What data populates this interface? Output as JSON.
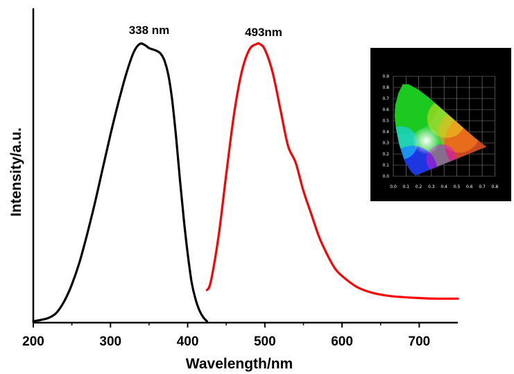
{
  "chart_data": {
    "type": "line",
    "xlabel": "Wavelength/nm",
    "ylabel": "Intensity/a.u.",
    "xlim": [
      200,
      750
    ],
    "ylim": [
      0,
      1
    ],
    "x_ticks": [
      200,
      300,
      400,
      500,
      600,
      700
    ],
    "grid": false,
    "series": [
      {
        "color": "#000000",
        "x": [
          200,
          210,
          220,
          230,
          240,
          250,
          260,
          270,
          280,
          290,
          300,
          310,
          320,
          330,
          338,
          345,
          350,
          360,
          365,
          370,
          375,
          380,
          385,
          390,
          395,
          400,
          405,
          410,
          415,
          420,
          425
        ],
        "values": [
          0.0,
          0.005,
          0.012,
          0.03,
          0.07,
          0.13,
          0.21,
          0.31,
          0.42,
          0.54,
          0.66,
          0.77,
          0.87,
          0.95,
          0.98,
          0.975,
          0.965,
          0.955,
          0.945,
          0.92,
          0.87,
          0.78,
          0.65,
          0.5,
          0.36,
          0.24,
          0.14,
          0.08,
          0.04,
          0.015,
          0.0
        ]
      },
      {
        "color": "#ff0000",
        "x": [
          425,
          430,
          440,
          450,
          460,
          470,
          480,
          490,
          493,
          500,
          510,
          520,
          530,
          540,
          550,
          560,
          570,
          580,
          590,
          600,
          620,
          640,
          660,
          680,
          700,
          720,
          750
        ],
        "values": [
          0.11,
          0.14,
          0.3,
          0.52,
          0.73,
          0.88,
          0.96,
          0.98,
          0.98,
          0.96,
          0.88,
          0.75,
          0.62,
          0.56,
          0.46,
          0.38,
          0.3,
          0.24,
          0.19,
          0.16,
          0.12,
          0.1,
          0.09,
          0.085,
          0.082,
          0.08,
          0.08
        ]
      }
    ],
    "annotations": [
      {
        "text": "338 nm",
        "x": 338
      },
      {
        "text": "493nm",
        "x": 493
      }
    ],
    "inset": {
      "type": "CIE chromaticity diagram",
      "x_ticks": [
        "0.0",
        "0.1",
        "0.2",
        "0.3",
        "0.4",
        "0.5",
        "0.6",
        "0.7",
        "0.8"
      ],
      "y_ticks": [
        "0.0",
        "0.1",
        "0.2",
        "0.3",
        "0.4",
        "0.5",
        "0.6",
        "0.7",
        "0.8",
        "0.9"
      ],
      "point": [
        0.26,
        0.32
      ]
    }
  }
}
